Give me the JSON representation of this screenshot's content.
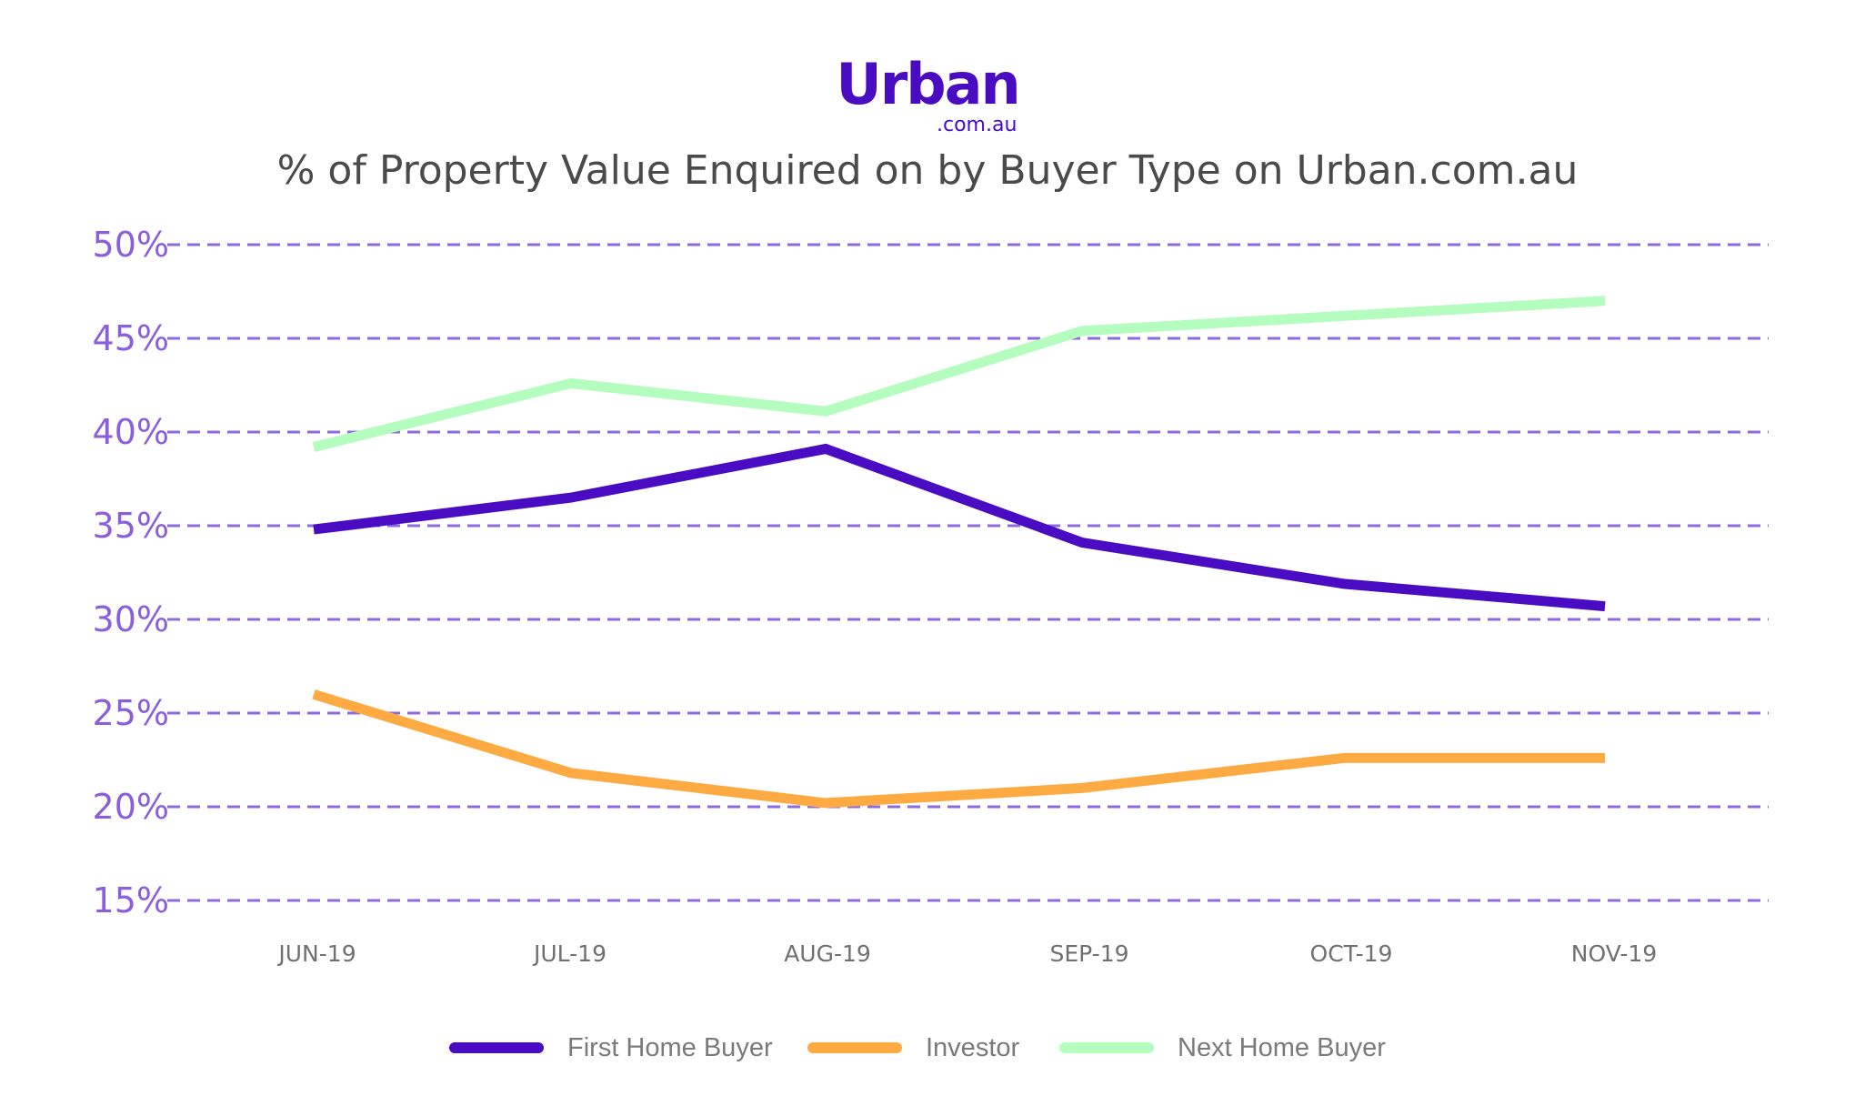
{
  "logo": {
    "word": "Urban",
    "sub": ".com.au"
  },
  "title": "% of Property Value Enquired on by Buyer Type on Urban.com.au",
  "colors": {
    "first_home_buyer": "#4A0CC2",
    "investor": "#FEAA42",
    "next_home_buyer": "#B5FDBE",
    "gridline": "#8E6AE0",
    "y_tick_label": "#8B5FDB",
    "x_tick_label": "#707070",
    "title": "#4A4A4A"
  },
  "legend": [
    {
      "label": "First Home Buyer",
      "color": "#4A0CC2"
    },
    {
      "label": "Investor",
      "color": "#FEAA42"
    },
    {
      "label": "Next Home Buyer",
      "color": "#B5FDBE"
    }
  ],
  "chart_data": {
    "type": "line",
    "title": "% of Property Value Enquired on by Buyer Type on Urban.com.au",
    "xlabel": "",
    "ylabel": "",
    "categories": [
      "JUN-19",
      "JUL-19",
      "AUG-19",
      "SEP-19",
      "OCT-19",
      "NOV-19"
    ],
    "y_ticks": [
      "50%",
      "45%",
      "40%",
      "35%",
      "30%",
      "25%",
      "20%",
      "15%"
    ],
    "y_tick_values": [
      50,
      45,
      40,
      35,
      30,
      25,
      20,
      15
    ],
    "ylim": [
      15,
      50
    ],
    "grid": "horizontal dashed",
    "legend_position": "bottom",
    "series": [
      {
        "name": "First Home Buyer",
        "color": "#4A0CC2",
        "values": [
          34.8,
          36.5,
          39.1,
          34.1,
          31.9,
          30.7
        ]
      },
      {
        "name": "Investor",
        "color": "#FEAA42",
        "values": [
          26.0,
          21.8,
          20.2,
          21.0,
          22.6,
          22.6
        ]
      },
      {
        "name": "Next Home Buyer",
        "color": "#B5FDBE",
        "values": [
          39.2,
          42.6,
          41.1,
          45.4,
          46.2,
          47.0
        ]
      }
    ]
  }
}
